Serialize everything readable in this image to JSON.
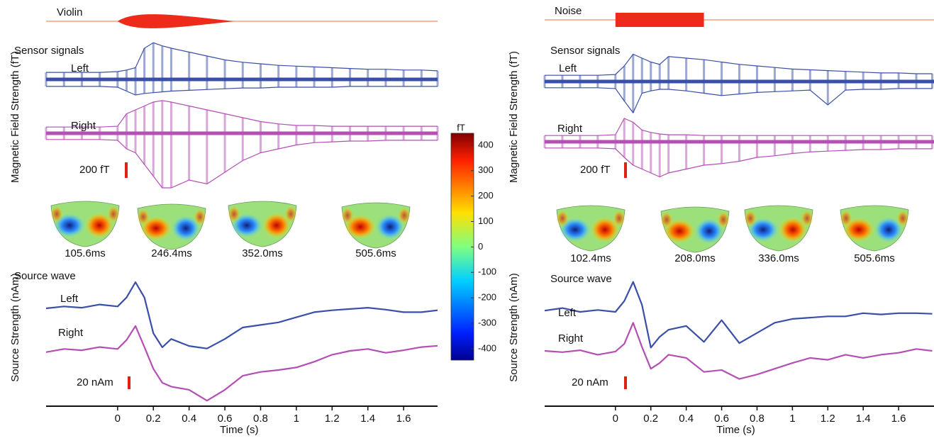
{
  "chart_data": [
    {
      "type": "line",
      "stimulus": "Violin",
      "sensor_title": "Sensor signals",
      "source_title": "Source wave",
      "ylabel_sensor": "Magnetic Field Strength (fT)",
      "ylabel_source": "Source Strength (nAm)",
      "xlabel": "Time (s)",
      "xlim": [
        -0.4,
        1.79
      ],
      "xticks": [
        0,
        0.2,
        0.4,
        0.6,
        0.8,
        1,
        1.2,
        1.4,
        1.6
      ],
      "x": [
        -0.4,
        -0.3,
        -0.2,
        -0.1,
        0,
        0.05,
        0.1,
        0.15,
        0.2,
        0.25,
        0.3,
        0.4,
        0.5,
        0.6,
        0.7,
        0.8,
        0.9,
        1.0,
        1.1,
        1.2,
        1.3,
        1.4,
        1.5,
        1.6,
        1.7,
        1.79
      ],
      "sensor_series": [
        {
          "name": "Left",
          "color": "#3a4fa8",
          "upper": [
            90,
            90,
            90,
            90,
            100,
            120,
            150,
            400,
            470,
            430,
            400,
            350,
            300,
            250,
            220,
            200,
            180,
            170,
            160,
            150,
            140,
            130,
            130,
            120,
            120,
            110
          ],
          "lower": [
            -90,
            -90,
            -90,
            -90,
            -100,
            -150,
            -200,
            -180,
            -170,
            -160,
            -150,
            -140,
            -130,
            -120,
            -110,
            -110,
            -100,
            -100,
            -100,
            -100,
            -90,
            -90,
            -90,
            -90,
            -90,
            -90
          ]
        },
        {
          "name": "Right",
          "color": "#b44fb4",
          "upper": [
            80,
            80,
            80,
            80,
            90,
            250,
            300,
            350,
            400,
            420,
            400,
            350,
            300,
            250,
            200,
            150,
            120,
            100,
            100,
            90,
            90,
            90,
            90,
            90,
            90,
            90
          ],
          "lower": [
            -80,
            -80,
            -80,
            -80,
            -90,
            -200,
            -250,
            -400,
            -550,
            -700,
            -700,
            -600,
            -650,
            -500,
            -350,
            -250,
            -200,
            -150,
            -120,
            -110,
            -100,
            -100,
            -90,
            -90,
            -90,
            -90
          ]
        }
      ],
      "series": [
        {
          "name": "Left",
          "color": "#3a4fa8",
          "values": [
            0,
            3,
            1,
            6,
            3,
            17,
            41,
            17,
            -39,
            -61,
            -48,
            -59,
            -63,
            -48,
            -30,
            -26,
            -22,
            -14,
            -6,
            -3,
            -1,
            1,
            -2,
            -6,
            -6,
            -3
          ]
        },
        {
          "name": "Right",
          "color": "#b44fb4",
          "values": [
            -2,
            3,
            1,
            6,
            3,
            17,
            39,
            6,
            -28,
            -50,
            -56,
            -61,
            -78,
            -61,
            -39,
            -33,
            -30,
            -26,
            -17,
            -6,
            0,
            3,
            -3,
            1,
            6,
            8
          ]
        }
      ],
      "sensor_scale": {
        "value": 200,
        "label": "200 fT"
      },
      "source_scale": {
        "value": 20,
        "label": "20 nAm"
      },
      "topomap_times": [
        "105.6ms",
        "246.4ms",
        "352.0ms",
        "505.6ms"
      ]
    },
    {
      "type": "line",
      "stimulus": "Noise",
      "sensor_title": "Sensor signals",
      "source_title": "Source wave",
      "ylabel_sensor": "Magnetic Field Strength (fT)",
      "ylabel_source": "Source Strength (nAm)",
      "xlabel": "Time (s)",
      "xlim": [
        -0.4,
        1.8
      ],
      "xticks": [
        0,
        0.2,
        0.4,
        0.6,
        0.8,
        1,
        1.2,
        1.4,
        1.6
      ],
      "x": [
        -0.4,
        -0.3,
        -0.2,
        -0.1,
        0,
        0.05,
        0.1,
        0.15,
        0.2,
        0.25,
        0.3,
        0.4,
        0.5,
        0.6,
        0.7,
        0.8,
        0.9,
        1.0,
        1.1,
        1.2,
        1.3,
        1.4,
        1.5,
        1.6,
        1.7,
        1.79
      ],
      "sensor_series": [
        {
          "name": "Left",
          "color": "#3a4fa8",
          "upper": [
            80,
            80,
            80,
            80,
            90,
            200,
            350,
            300,
            250,
            220,
            320,
            300,
            280,
            250,
            220,
            200,
            180,
            160,
            150,
            140,
            130,
            120,
            110,
            110,
            100,
            100
          ],
          "lower": [
            -80,
            -80,
            -80,
            -80,
            -90,
            -250,
            -400,
            -150,
            -120,
            -100,
            -100,
            -120,
            -150,
            -180,
            -160,
            -140,
            -130,
            -120,
            -110,
            -300,
            -110,
            -100,
            -100,
            -90,
            -90,
            -90
          ]
        },
        {
          "name": "Right",
          "color": "#b44fb4",
          "upper": [
            80,
            80,
            80,
            80,
            90,
            300,
            250,
            150,
            120,
            100,
            90,
            90,
            80,
            80,
            80,
            80,
            80,
            80,
            80,
            80,
            80,
            80,
            80,
            80,
            80,
            80
          ],
          "lower": [
            -80,
            -80,
            -80,
            -80,
            -90,
            -200,
            -300,
            -350,
            -400,
            -450,
            -400,
            -350,
            -300,
            -280,
            -250,
            -200,
            -180,
            -150,
            -130,
            -120,
            -110,
            -100,
            -100,
            -90,
            -90,
            -90
          ]
        }
      ],
      "series": [
        {
          "name": "Left",
          "color": "#3a4fa8",
          "values": [
            2,
            6,
            0,
            3,
            0,
            17,
            47,
            11,
            -56,
            -39,
            -28,
            -22,
            -47,
            -13,
            -49,
            -33,
            -17,
            -11,
            -9,
            -7,
            -7,
            -2,
            -4,
            -2,
            -2,
            -3
          ]
        },
        {
          "name": "Right",
          "color": "#b44fb4",
          "values": [
            0,
            -2,
            1,
            -6,
            -1,
            11,
            44,
            6,
            -28,
            -19,
            -6,
            -11,
            -33,
            -30,
            -44,
            -37,
            -28,
            -19,
            -11,
            -14,
            -6,
            -11,
            -6,
            -3,
            3,
            0
          ]
        }
      ],
      "sensor_scale": {
        "value": 200,
        "label": "200 fT"
      },
      "source_scale": {
        "value": 20,
        "label": "20 nAm"
      },
      "topomap_times": [
        "102.4ms",
        "208.0ms",
        "336.0ms",
        "505.6ms"
      ]
    }
  ],
  "colorbar": {
    "label": "fT",
    "lim": [
      -445,
      447
    ],
    "ticks": [
      400,
      300,
      200,
      100,
      0,
      -100,
      -200,
      -300,
      -400
    ]
  }
}
